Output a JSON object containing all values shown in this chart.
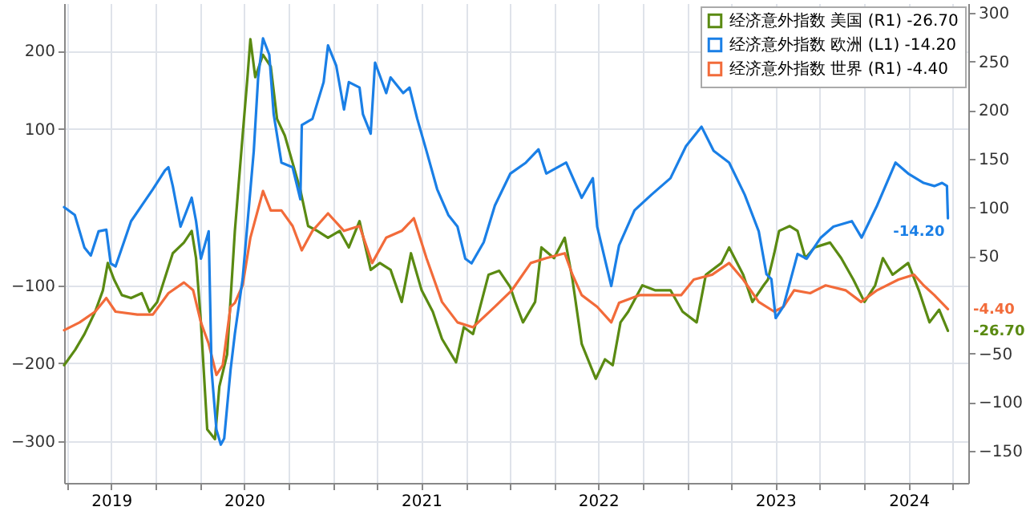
{
  "chart_data": {
    "type": "line",
    "legend": "top right",
    "grid": true,
    "xlim": [
      "2019-06-26",
      "2024-08-02"
    ],
    "xticks": [
      {
        "value": "2019-07-01",
        "label": null
      },
      {
        "value": "2019-10-01",
        "label": "2019"
      },
      {
        "value": "2020-01-01",
        "label": null
      },
      {
        "value": "2020-04-01",
        "label": null
      },
      {
        "value": "2020-07-01",
        "label": "2020"
      },
      {
        "value": "2020-10-01",
        "label": null
      },
      {
        "value": "2021-01-01",
        "label": null
      },
      {
        "value": "2021-04-01",
        "label": null
      },
      {
        "value": "2021-07-01",
        "label": "2021"
      },
      {
        "value": "2021-10-01",
        "label": null
      },
      {
        "value": "2022-01-01",
        "label": null
      },
      {
        "value": "2022-04-01",
        "label": null
      },
      {
        "value": "2022-07-01",
        "label": "2022"
      },
      {
        "value": "2022-10-01",
        "label": null
      },
      {
        "value": "2023-01-01",
        "label": null
      },
      {
        "value": "2023-04-01",
        "label": null
      },
      {
        "value": "2023-07-01",
        "label": "2023"
      },
      {
        "value": "2023-10-01",
        "label": null
      },
      {
        "value": "2024-01-01",
        "label": null
      },
      {
        "value": "2024-04-01",
        "label": "2024"
      },
      {
        "value": "2024-07-01",
        "label": null
      }
    ],
    "ylim": [
      -353,
      261
    ],
    "yticks": [
      -300,
      -200,
      -100,
      100,
      200
    ],
    "y2lim": [
      -183,
      310
    ],
    "y2ticks": [
      -150,
      -100,
      -50,
      50,
      100,
      150,
      200,
      250,
      300
    ],
    "series": [
      {
        "name": "经济意外指数 美国 (R1) -26.70",
        "color": "#5a8a12",
        "axis": "y2",
        "x": [
          "2019-06-26",
          "2019-07-19",
          "2019-08-07",
          "2019-08-29",
          "2019-09-14",
          "2019-09-24",
          "2019-10-07",
          "2019-10-23",
          "2019-11-11",
          "2019-12-03",
          "2019-12-19",
          "2020-01-04",
          "2020-02-05",
          "2020-02-28",
          "2020-03-15",
          "2020-03-24",
          "2020-04-03",
          "2020-04-16",
          "2020-05-02",
          "2020-05-11",
          "2020-05-27",
          "2020-06-12",
          "2020-06-28",
          "2020-07-08",
          "2020-07-14",
          "2020-07-24",
          "2020-08-09",
          "2020-08-25",
          "2020-09-07",
          "2020-09-23",
          "2020-10-09",
          "2020-10-25",
          "2020-11-10",
          "2020-11-29",
          "2020-12-21",
          "2021-01-14",
          "2021-02-02",
          "2021-02-24",
          "2021-03-19",
          "2021-04-07",
          "2021-04-29",
          "2021-05-22",
          "2021-06-10",
          "2021-07-02",
          "2021-07-25",
          "2021-08-13",
          "2021-09-11",
          "2021-09-27",
          "2021-10-16",
          "2021-11-17",
          "2021-12-09",
          "2022-01-01",
          "2022-01-11",
          "2022-01-27",
          "2022-02-21",
          "2022-03-06",
          "2022-04-01",
          "2022-04-23",
          "2022-05-09",
          "2022-05-28",
          "2022-06-26",
          "2022-07-15",
          "2022-07-31",
          "2022-08-16",
          "2022-09-01",
          "2022-09-30",
          "2022-10-26",
          "2022-11-27",
          "2022-12-22",
          "2023-01-20",
          "2023-02-08",
          "2023-03-12",
          "2023-03-28",
          "2023-04-26",
          "2023-05-15",
          "2023-06-07",
          "2023-06-16",
          "2023-06-29",
          "2023-07-09",
          "2023-07-31",
          "2023-08-16",
          "2023-09-01",
          "2023-09-20",
          "2023-10-22",
          "2023-11-14",
          "2023-12-09",
          "2024-01-01",
          "2024-01-23",
          "2024-02-08",
          "2024-02-28",
          "2024-03-31",
          "2024-04-22",
          "2024-05-14",
          "2024-06-03",
          "2024-06-21"
        ],
        "values": [
          -62,
          -46,
          -30,
          -7,
          15,
          43,
          26,
          10,
          7,
          12,
          -7,
          3,
          53,
          64,
          76,
          48,
          -18,
          -128,
          -138,
          -84,
          -51,
          76,
          174,
          234,
          273,
          234,
          257,
          245,
          191,
          174,
          146,
          118,
          81,
          76,
          69,
          76,
          59,
          86,
          36,
          43,
          36,
          3,
          53,
          15,
          -7,
          -35,
          -59,
          -23,
          -30,
          31,
          35,
          18,
          3,
          -18,
          3,
          59,
          48,
          69,
          26,
          -40,
          -76,
          -56,
          -62,
          -18,
          -7,
          20,
          15,
          15,
          -7,
          -18,
          31,
          43,
          59,
          31,
          3,
          20,
          26,
          53,
          76,
          81,
          76,
          48,
          59,
          64,
          48,
          26,
          3,
          20,
          48,
          31,
          43,
          15,
          -18,
          -5,
          -26.7
        ],
        "value_labels": [
          null,
          null,
          null,
          null,
          null,
          null,
          null,
          null,
          null,
          null,
          null,
          null,
          null,
          null,
          null,
          null,
          null,
          null,
          null,
          null,
          null,
          null,
          null,
          null,
          null,
          null,
          null,
          null,
          null,
          null,
          null,
          null,
          null,
          null,
          null,
          null,
          null,
          null,
          null,
          null,
          null,
          null,
          null,
          null,
          null,
          null,
          null,
          null,
          null,
          null,
          null,
          null,
          null,
          null,
          null,
          null,
          null,
          null,
          null,
          null,
          null,
          null,
          null,
          null,
          null,
          null,
          null,
          null,
          null,
          null,
          null,
          null,
          null,
          null,
          null,
          null,
          null,
          null,
          null,
          null,
          null,
          null,
          null,
          null,
          null,
          null,
          null,
          null,
          null,
          null,
          null,
          null,
          null,
          null,
          "-26.70"
        ]
      },
      {
        "name": "经济意外指数 欧洲 (L1) -14.20",
        "color": "#1a7fe6",
        "axis": "y",
        "x": [
          "2019-06-26",
          "2019-07-18",
          "2019-08-07",
          "2019-08-20",
          "2019-09-05",
          "2019-09-21",
          "2019-09-30",
          "2019-10-10",
          "2019-11-11",
          "2019-12-26",
          "2020-01-20",
          "2020-01-27",
          "2020-02-05",
          "2020-02-21",
          "2020-03-15",
          "2020-03-24",
          "2020-04-03",
          "2020-04-19",
          "2020-04-25",
          "2020-05-05",
          "2020-05-14",
          "2020-05-21",
          "2020-06-03",
          "2020-06-12",
          "2020-06-28",
          "2020-07-21",
          "2020-07-30",
          "2020-08-09",
          "2020-08-22",
          "2020-08-31",
          "2020-09-16",
          "2020-10-09",
          "2020-10-25",
          "2020-10-28",
          "2020-11-19",
          "2020-12-12",
          "2020-12-21",
          "2021-01-07",
          "2021-01-23",
          "2021-02-02",
          "2021-02-24",
          "2021-03-03",
          "2021-03-19",
          "2021-03-28",
          "2021-04-20",
          "2021-04-29",
          "2021-05-25",
          "2021-06-07",
          "2021-06-23",
          "2021-07-12",
          "2021-08-03",
          "2021-08-26",
          "2021-09-14",
          "2021-09-30",
          "2021-10-13",
          "2021-11-07",
          "2021-11-30",
          "2022-01-01",
          "2022-02-02",
          "2022-02-28",
          "2022-03-16",
          "2022-04-26",
          "2022-05-28",
          "2022-06-20",
          "2022-06-29",
          "2022-07-28",
          "2022-08-13",
          "2022-09-14",
          "2022-10-19",
          "2022-11-27",
          "2022-12-29",
          "2023-01-30",
          "2023-02-24",
          "2023-03-28",
          "2023-04-29",
          "2023-05-28",
          "2023-06-13",
          "2023-06-23",
          "2023-07-02",
          "2023-07-18",
          "2023-08-16",
          "2023-09-04",
          "2023-10-03",
          "2023-10-29",
          "2023-12-06",
          "2023-12-26",
          "2024-01-27",
          "2024-03-05",
          "2024-03-31",
          "2024-05-02",
          "2024-05-24",
          "2024-06-09",
          "2024-06-19",
          "2024-06-21"
        ],
        "values": [
          0,
          -10,
          -52,
          -62,
          -31,
          -29,
          -72,
          -76,
          -18,
          23,
          47,
          51,
          27,
          -25,
          12,
          -18,
          -66,
          -31,
          -209,
          -285,
          -304,
          -296,
          -209,
          -162,
          -92,
          72,
          166,
          216,
          195,
          119,
          57,
          51,
          10,
          105,
          113,
          160,
          207,
          181,
          125,
          160,
          153,
          119,
          94,
          185,
          146,
          166,
          146,
          153,
          113,
          72,
          23,
          -10,
          -25,
          -66,
          -72,
          -45,
          2,
          43,
          57,
          74,
          43,
          57,
          12,
          37,
          -25,
          -101,
          -49,
          -4,
          16,
          37,
          78,
          103,
          72,
          57,
          16,
          -31,
          -86,
          -92,
          -142,
          -127,
          -60,
          -66,
          -39,
          -25,
          -18,
          -39,
          2,
          57,
          43,
          31,
          27,
          31,
          27,
          -14.2
        ],
        "value_labels": [
          null,
          null,
          null,
          null,
          null,
          null,
          null,
          null,
          null,
          null,
          null,
          null,
          null,
          null,
          null,
          null,
          null,
          null,
          null,
          null,
          null,
          null,
          null,
          null,
          null,
          null,
          null,
          null,
          null,
          null,
          null,
          null,
          null,
          null,
          null,
          null,
          null,
          null,
          null,
          null,
          null,
          null,
          null,
          null,
          null,
          null,
          null,
          null,
          null,
          null,
          null,
          null,
          null,
          null,
          null,
          null,
          null,
          null,
          null,
          null,
          null,
          null,
          null,
          null,
          null,
          null,
          null,
          null,
          null,
          null,
          null,
          null,
          null,
          null,
          null,
          null,
          null,
          null,
          null,
          null,
          null,
          null,
          null,
          null,
          null,
          null,
          null,
          null,
          null,
          null,
          null,
          null,
          null,
          "-14.20"
        ]
      },
      {
        "name": "经济意外指数 世界 (R1) -4.40",
        "color": "#f26b3a",
        "axis": "y2",
        "x": [
          "2019-06-26",
          "2019-07-28",
          "2019-08-29",
          "2019-09-21",
          "2019-10-10",
          "2019-11-24",
          "2019-12-26",
          "2020-01-27",
          "2020-02-28",
          "2020-03-18",
          "2020-04-03",
          "2020-04-19",
          "2020-05-05",
          "2020-05-18",
          "2020-06-03",
          "2020-06-12",
          "2020-06-28",
          "2020-07-14",
          "2020-08-09",
          "2020-08-25",
          "2020-09-16",
          "2020-10-09",
          "2020-10-28",
          "2020-11-19",
          "2020-12-21",
          "2021-01-23",
          "2021-02-24",
          "2021-03-22",
          "2021-04-20",
          "2021-05-22",
          "2021-06-16",
          "2021-07-12",
          "2021-08-13",
          "2021-09-14",
          "2021-10-16",
          "2021-11-30",
          "2022-01-04",
          "2022-01-11",
          "2022-02-12",
          "2022-03-16",
          "2022-04-23",
          "2022-05-09",
          "2022-05-28",
          "2022-06-29",
          "2022-07-28",
          "2022-08-13",
          "2022-09-24",
          "2022-11-17",
          "2022-12-19",
          "2023-01-14",
          "2023-02-21",
          "2023-03-28",
          "2023-04-26",
          "2023-05-28",
          "2023-06-29",
          "2023-07-18",
          "2023-08-09",
          "2023-09-11",
          "2023-10-13",
          "2023-11-23",
          "2023-12-25",
          "2024-01-27",
          "2024-03-11",
          "2024-04-12",
          "2024-05-02",
          "2024-05-24",
          "2024-06-21"
        ],
        "values": [
          -26,
          -18,
          -7,
          7,
          -7,
          -10,
          -10,
          12,
          23,
          15,
          -18,
          -40,
          -72,
          -62,
          -2,
          2,
          20,
          69,
          117,
          97,
          97,
          81,
          56,
          76,
          94,
          76,
          81,
          43,
          69,
          76,
          89,
          48,
          3,
          -18,
          -23,
          -2,
          15,
          20,
          43,
          48,
          53,
          31,
          10,
          -2,
          -18,
          2,
          10,
          10,
          10,
          26,
          31,
          43,
          26,
          3,
          -7,
          -2,
          15,
          12,
          20,
          15,
          3,
          15,
          26,
          31,
          20,
          10,
          -4.4
        ],
        "value_labels": [
          null,
          null,
          null,
          null,
          null,
          null,
          null,
          null,
          null,
          null,
          null,
          null,
          null,
          null,
          null,
          null,
          null,
          null,
          null,
          null,
          null,
          null,
          null,
          null,
          null,
          null,
          null,
          null,
          null,
          null,
          null,
          null,
          null,
          null,
          null,
          null,
          null,
          null,
          null,
          null,
          null,
          null,
          null,
          null,
          null,
          null,
          null,
          null,
          null,
          null,
          null,
          null,
          null,
          null,
          null,
          null,
          null,
          null,
          null,
          null,
          null,
          null,
          null,
          null,
          null,
          null,
          "-4.40"
        ]
      }
    ]
  }
}
